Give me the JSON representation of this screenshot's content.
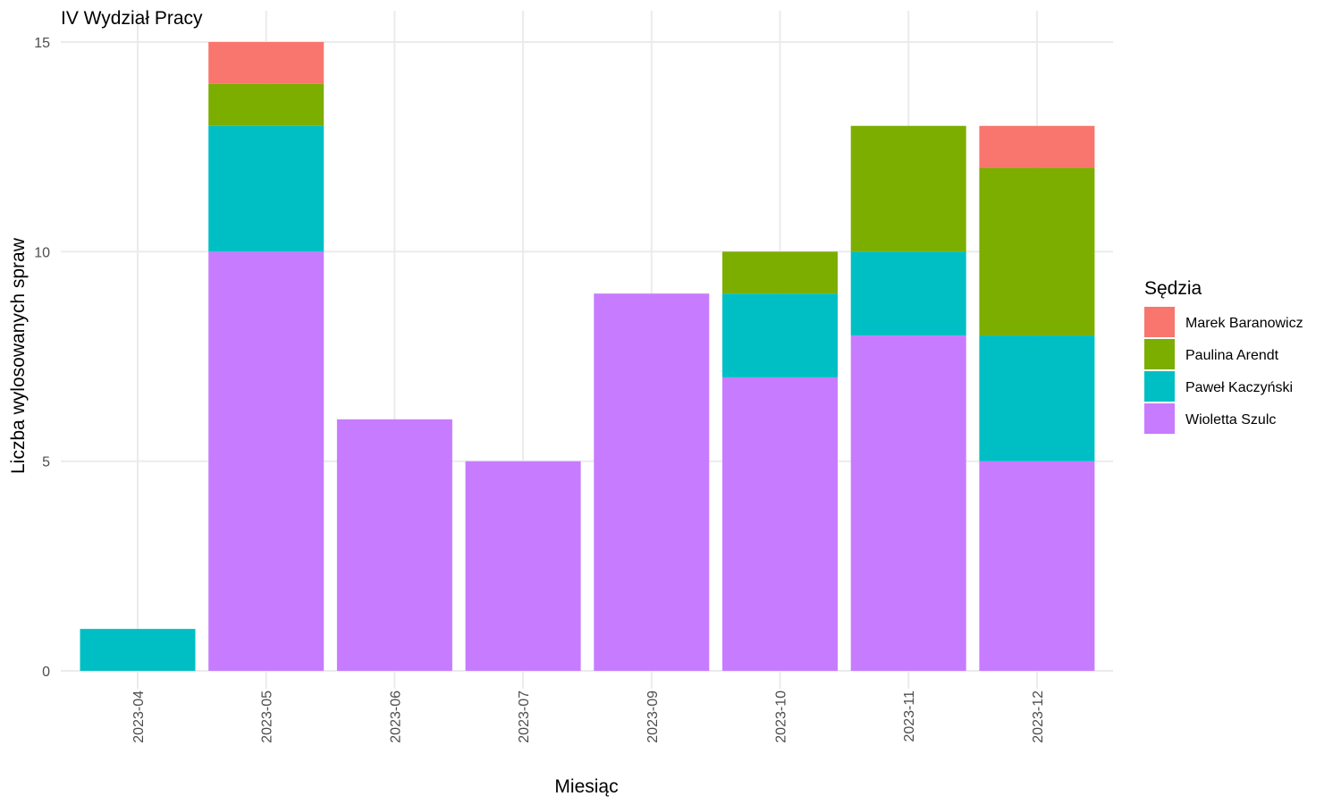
{
  "chart_data": {
    "type": "bar",
    "stacked": true,
    "title": "IV Wydział Pracy",
    "xlabel": "Miesiąc",
    "ylabel": "Liczba wylosowanych spraw",
    "ylim": [
      0,
      15
    ],
    "yticks": [
      0,
      5,
      10,
      15
    ],
    "grid": true,
    "legend_position": "right",
    "legend_title": "Sędzia",
    "categories": [
      "2023-04",
      "2023-05",
      "2023-06",
      "2023-07",
      "2023-09",
      "2023-10",
      "2023-11",
      "2023-12"
    ],
    "series": [
      {
        "name": "Marek Baranowicz",
        "color": "#F8766D",
        "values": [
          0,
          1,
          0,
          0,
          0,
          0,
          0,
          1
        ]
      },
      {
        "name": "Paulina Arendt",
        "color": "#7CAE00",
        "values": [
          0,
          1,
          0,
          0,
          0,
          1,
          3,
          4
        ]
      },
      {
        "name": "Paweł Kaczyński",
        "color": "#00BFC4",
        "values": [
          1,
          3,
          0,
          0,
          0,
          2,
          2,
          3
        ]
      },
      {
        "name": "Wioletta Szulc",
        "color": "#C77CFF",
        "values": [
          0,
          10,
          6,
          5,
          9,
          7,
          8,
          5
        ]
      }
    ]
  }
}
